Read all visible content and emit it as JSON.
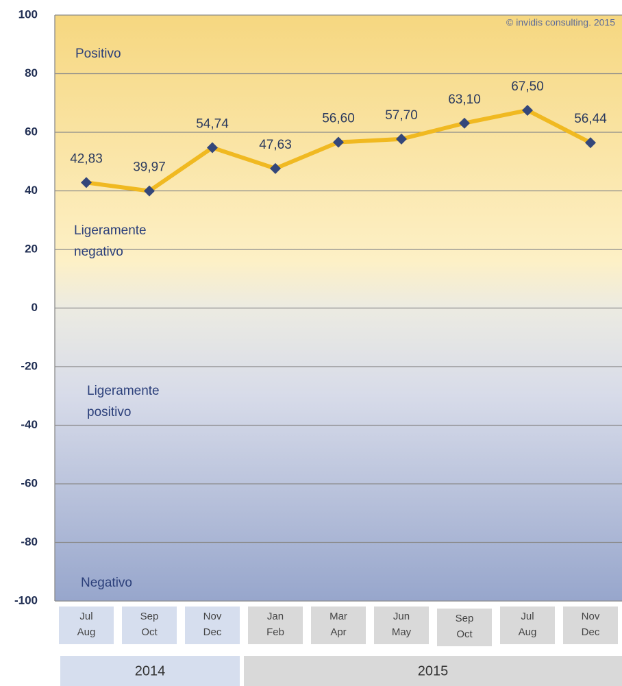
{
  "chart_data": {
    "type": "line",
    "categories": [
      [
        "Jul",
        "Aug"
      ],
      [
        "Sep",
        "Oct"
      ],
      [
        "Nov",
        "Dec"
      ],
      [
        "Jan",
        "Feb"
      ],
      [
        "Mar",
        "Apr"
      ],
      [
        "Jun",
        "May"
      ],
      [
        "Sep",
        "Oct"
      ],
      [
        "Jul",
        "Aug"
      ],
      [
        "Nov",
        "Dec"
      ]
    ],
    "groups": [
      "2014",
      "2015"
    ],
    "series": [
      {
        "color": "#f0b921",
        "marker_color": "#34477a",
        "values": [
          42.83,
          39.97,
          54.74,
          47.63,
          56.6,
          57.7,
          63.1,
          67.5,
          56.44
        ],
        "value_labels": [
          "42,83",
          "39,97",
          "54,74",
          "47,63",
          "56,60",
          "57,70",
          "63,10",
          "67,50",
          "56,44"
        ]
      }
    ],
    "ylim": [
      -100,
      100
    ],
    "yticks": [
      100,
      80,
      60,
      40,
      20,
      0,
      -20,
      -40,
      -60,
      -80,
      -100
    ],
    "grid": true,
    "annotations": [
      [
        "Positivo"
      ],
      [
        "Ligeramente",
        "negativo"
      ],
      [
        "Ligeramente",
        "positivo"
      ],
      [
        "Negativo"
      ]
    ],
    "copyright": "© invidis consulting. 2015"
  }
}
